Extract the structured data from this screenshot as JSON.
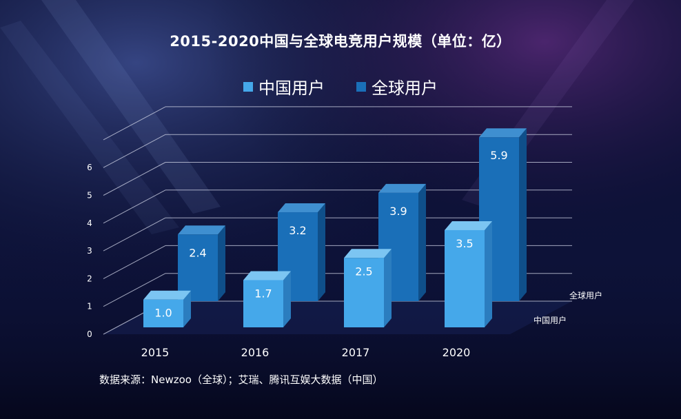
{
  "colors": {
    "china_front": "#45a8ea",
    "china_side": "#2b7dbf",
    "china_top": "#7cc5f2",
    "global_front": "#1a6fb8",
    "global_side": "#0f4f8a",
    "global_top": "#3f8fd0",
    "grid": "#c9cde0"
  },
  "chart_data": {
    "type": "bar",
    "title": "2015-2020中国与全球电竞用户规模（单位：亿）",
    "categories": [
      "2015",
      "2016",
      "2017",
      "2020"
    ],
    "series": [
      {
        "name": "中国用户",
        "values": [
          1.0,
          1.7,
          2.5,
          3.5
        ]
      },
      {
        "name": "全球用户",
        "values": [
          2.4,
          3.2,
          3.9,
          5.9
        ]
      }
    ],
    "value_labels": {
      "china": [
        "1.0",
        "1.7",
        "2.5",
        "3.5"
      ],
      "global": [
        "2.4",
        "3.2",
        "3.9",
        "5.9"
      ]
    },
    "yticks": [
      "0",
      "1",
      "2",
      "3",
      "4",
      "5",
      "6"
    ],
    "ylim": [
      0,
      6
    ],
    "depth_labels": [
      "全球用户",
      "中国用户"
    ],
    "legend": [
      "中国用户",
      "全球用户"
    ],
    "legend_position": "top-center",
    "grid": true,
    "source": "数据来源：Newzoo（全球）；艾瑞、腾讯互娱大数据（中国）"
  }
}
